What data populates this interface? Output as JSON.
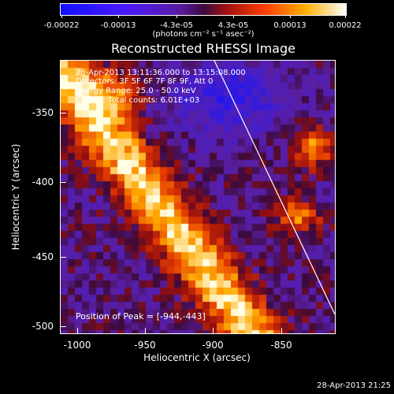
{
  "colorbar": {
    "ticks": [
      "-0.00022",
      "-0.00013",
      "-4.3e-05",
      "4.3e-05",
      "0.00013",
      "0.00022"
    ],
    "units": "(photons cm⁻² s⁻¹ asec⁻²)"
  },
  "title": "Reconstructed RHESSI Image",
  "info": {
    "time": "28-Apr-2013 13:11:36.000 to 13:15:08.000",
    "detectors": "Detectors: 3F 5F 6F 7F 8F 9F, Att 0",
    "energy": "Energy Range: 25.0 - 50.0 keV",
    "clean": "Clean    Total counts: 6.01E+03",
    "peak": "Position of Peak = [-944,-443]"
  },
  "axes": {
    "xlabel": "Heliocentric X (arcsec)",
    "ylabel": "Heliocentric Y (arcsec)",
    "xticks": [
      "-1000",
      "-950",
      "-900",
      "-850"
    ],
    "yticks": [
      "-350",
      "-400",
      "-450",
      "-500"
    ]
  },
  "timestamp": "28-Apr-2013 21:25"
}
